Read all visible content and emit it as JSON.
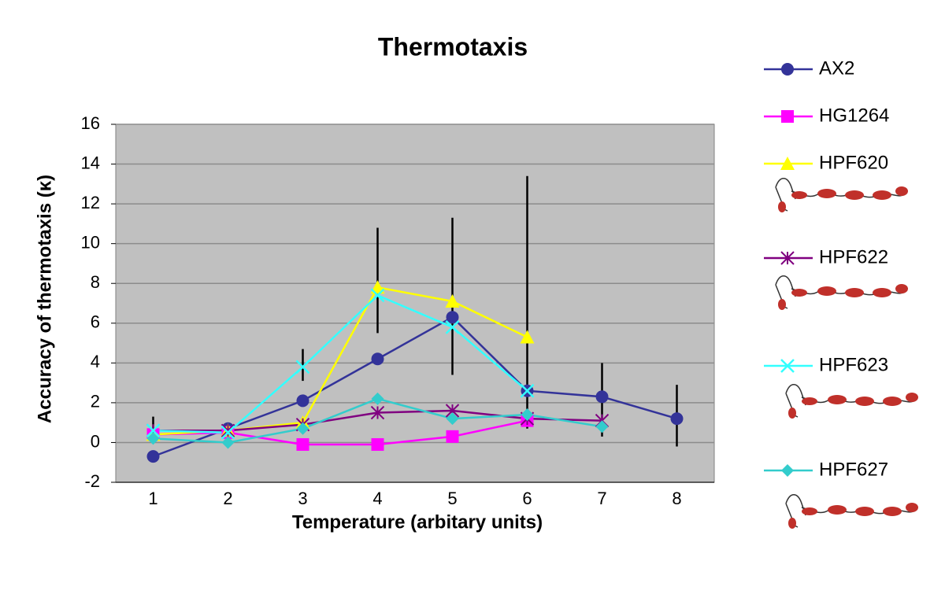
{
  "chart_data": {
    "type": "line",
    "title": "Thermotaxis",
    "x_label": "Temperature (arbitary units)",
    "y_label": "Accuracy of thermotaxis (κ)",
    "categories": [
      "1",
      "2",
      "3",
      "4",
      "5",
      "6",
      "7",
      "8"
    ],
    "ylim": [
      -2,
      16
    ],
    "yticks": [
      -2,
      0,
      2,
      4,
      6,
      8,
      10,
      12,
      14,
      16
    ],
    "grid": true,
    "legend": "right",
    "series": [
      {
        "name": "AX2",
        "color": "#333399",
        "marker": "circle",
        "values": [
          -0.7,
          0.7,
          2.1,
          4.2,
          6.3,
          2.6,
          2.3,
          1.2
        ]
      },
      {
        "name": "HG1264",
        "color": "#ff00ff",
        "marker": "square",
        "values": [
          0.4,
          0.5,
          -0.1,
          -0.1,
          0.3,
          1.1,
          null,
          null
        ]
      },
      {
        "name": "HPF620",
        "color": "#ffff00",
        "marker": "triangle",
        "values": [
          0.4,
          0.6,
          1.0,
          7.8,
          7.1,
          5.3,
          null,
          null
        ]
      },
      {
        "name": "HPF622",
        "color": "#800080",
        "marker": "star",
        "values": [
          0.6,
          0.6,
          0.9,
          1.5,
          1.6,
          1.2,
          1.1,
          null
        ]
      },
      {
        "name": "HPF623",
        "color": "#33ffff",
        "marker": "x",
        "values": [
          0.6,
          0.5,
          3.8,
          7.4,
          5.8,
          2.6,
          null,
          null
        ]
      },
      {
        "name": "HPF627",
        "color": "#33cccc",
        "marker": "diamond",
        "values": [
          0.2,
          0.0,
          0.7,
          2.2,
          1.2,
          1.4,
          0.8,
          null
        ]
      }
    ],
    "error_bars": {
      "color": "#000000",
      "low": [
        0.1,
        null,
        3.1,
        5.5,
        3.4,
        0.7,
        0.3,
        -0.2
      ],
      "high": [
        1.3,
        null,
        4.7,
        10.8,
        11.3,
        13.4,
        4.0,
        2.9
      ]
    }
  }
}
